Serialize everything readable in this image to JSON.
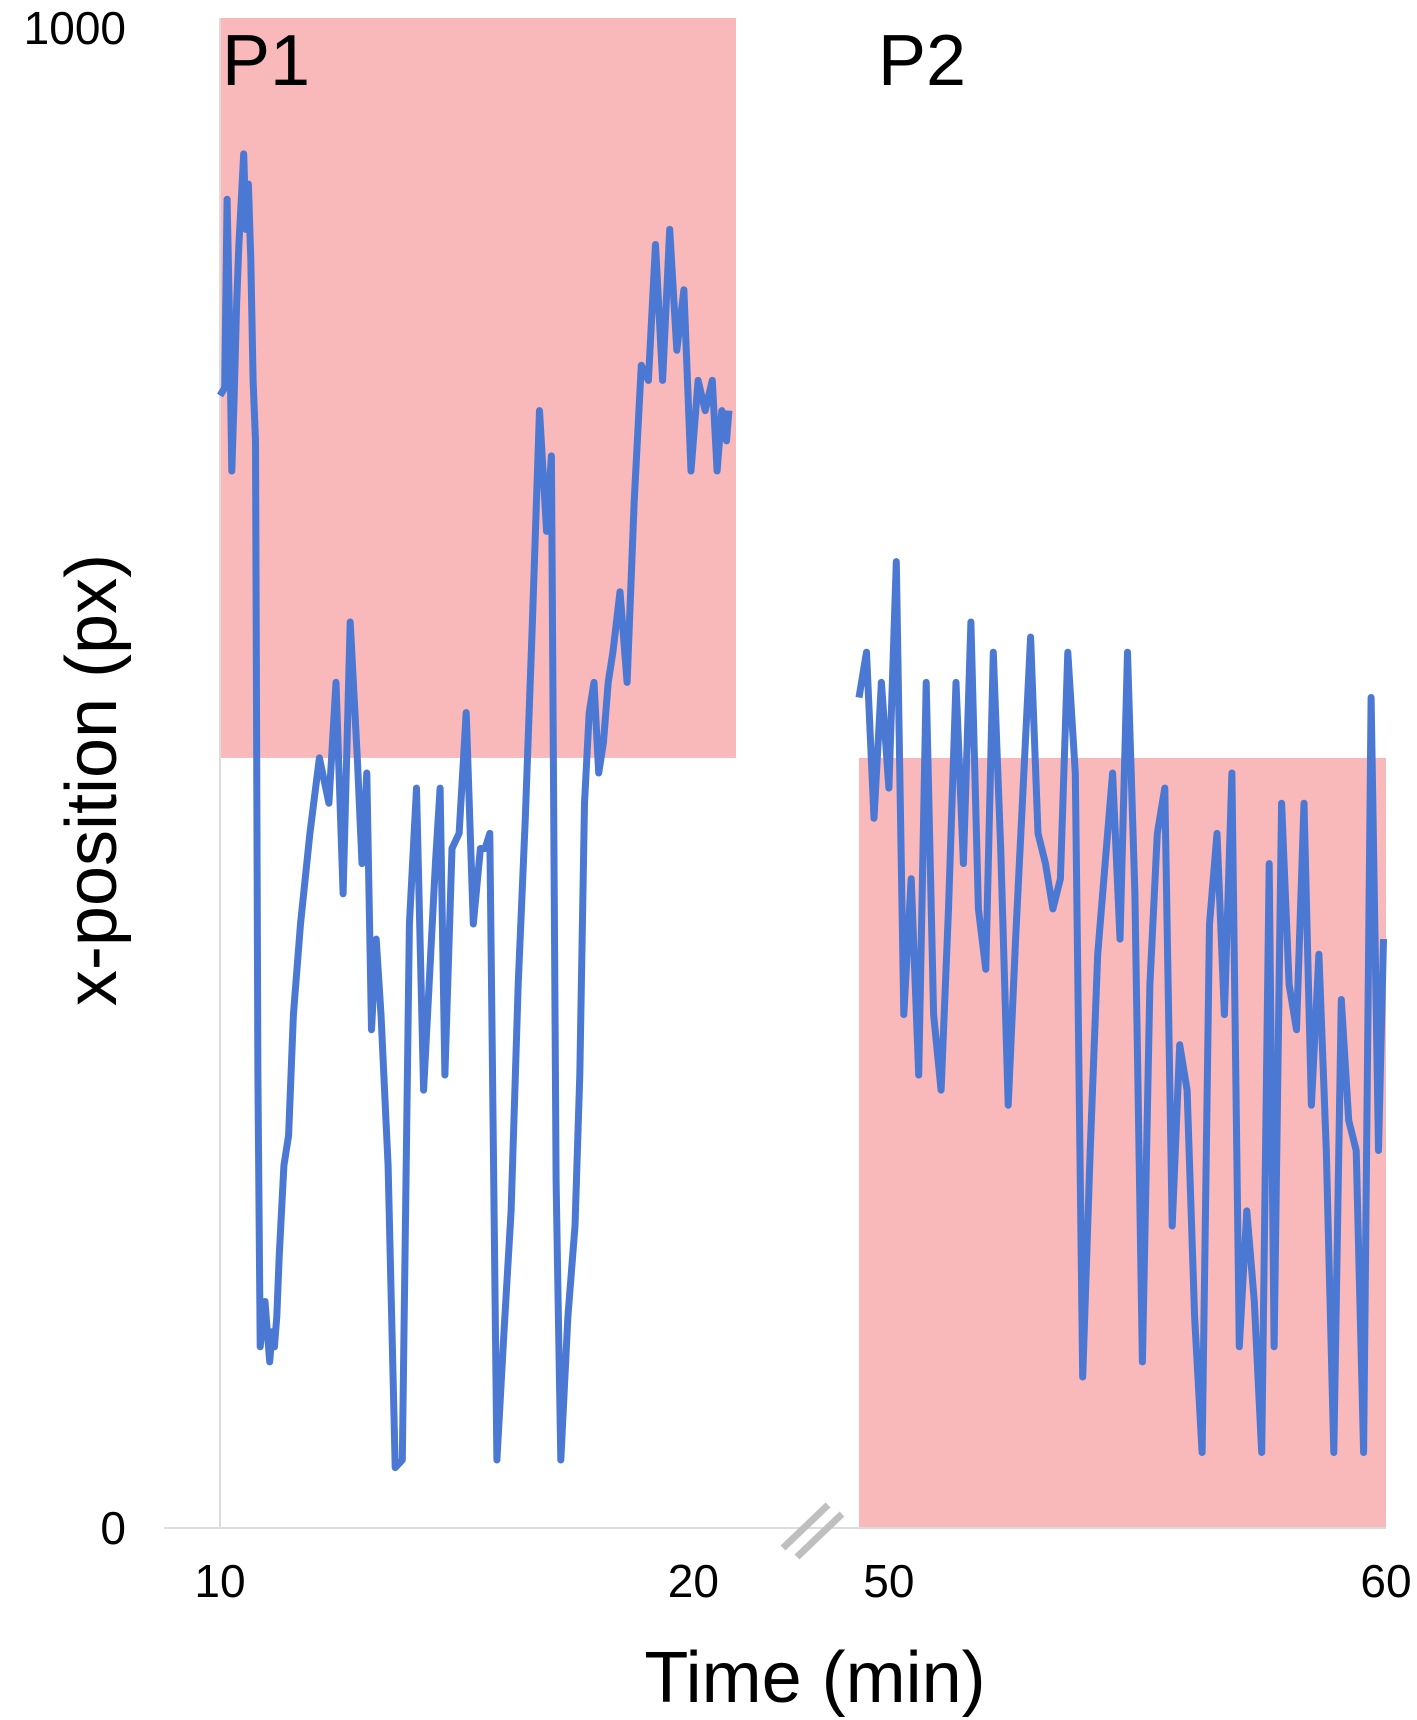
{
  "chart_data": {
    "type": "line",
    "xlabel": "Time (min)",
    "ylabel": "x-position (px)",
    "ylim": [
      0,
      1000
    ],
    "y_ticks": [
      "0",
      "1000"
    ],
    "x_axis_break": true,
    "panels": [
      {
        "label": "P1",
        "xlim": [
          10,
          20.9
        ],
        "x_ticks": [
          {
            "value": 10,
            "label": "10"
          },
          {
            "value": 20,
            "label": "20"
          }
        ],
        "shaded_region": {
          "x": [
            10,
            20.9
          ],
          "y": [
            510,
            1000
          ]
        },
        "series": {
          "color": "#4a78d2",
          "x": [
            10.0,
            10.1,
            10.15,
            10.2,
            10.25,
            10.3,
            10.35,
            10.4,
            10.5,
            10.55,
            10.6,
            10.65,
            10.7,
            10.75,
            10.8,
            10.85,
            10.95,
            11.05,
            11.1,
            11.15,
            11.2,
            11.25,
            11.35,
            11.45,
            11.55,
            11.7,
            11.9,
            12.1,
            12.3,
            12.45,
            12.6,
            12.75,
            12.9,
            13.0,
            13.1,
            13.2,
            13.3,
            13.4,
            13.55,
            13.7,
            13.85,
            14.0,
            14.15,
            14.3,
            14.45,
            14.55,
            14.65,
            14.75,
            14.9,
            15.05,
            15.2,
            15.35,
            15.5,
            15.6,
            15.7,
            15.85,
            16.0,
            16.15,
            16.3,
            16.45,
            16.6,
            16.75,
            16.9,
            17.0,
            17.1,
            17.2,
            17.35,
            17.5,
            17.6,
            17.7,
            17.8,
            17.9,
            18.0,
            18.1,
            18.2,
            18.3,
            18.45,
            18.6,
            18.75,
            18.9,
            19.05,
            19.2,
            19.35,
            19.5,
            19.65,
            19.8,
            19.95,
            20.1,
            20.25,
            20.4,
            20.5,
            20.6,
            20.7,
            20.75
          ],
          "y": [
            750,
            755,
            880,
            800,
            700,
            750,
            810,
            850,
            910,
            860,
            890,
            840,
            760,
            720,
            300,
            120,
            150,
            110,
            130,
            120,
            140,
            180,
            240,
            260,
            340,
            400,
            460,
            510,
            480,
            560,
            420,
            600,
            510,
            440,
            500,
            330,
            390,
            340,
            240,
            40,
            45,
            400,
            490,
            290,
            380,
            440,
            490,
            300,
            450,
            460,
            540,
            400,
            450,
            450,
            460,
            45,
            130,
            210,
            360,
            470,
            600,
            740,
            660,
            710,
            230,
            45,
            140,
            200,
            300,
            480,
            540,
            560,
            500,
            520,
            560,
            580,
            620,
            560,
            680,
            770,
            760,
            850,
            760,
            860,
            780,
            820,
            700,
            760,
            740,
            760,
            700,
            740,
            720,
            740
          ]
        }
      },
      {
        "label": "P2",
        "xlim": [
          49.54,
          60
        ],
        "x_ticks": [
          {
            "value": 50,
            "label": "50"
          },
          {
            "value": 60,
            "label": "60"
          }
        ],
        "shaded_region": {
          "x": [
            49.4,
            60
          ],
          "y": [
            0,
            510
          ]
        },
        "series": {
          "color": "#4a78d2",
          "x": [
            49.4,
            49.55,
            49.7,
            49.85,
            50.0,
            50.15,
            50.3,
            50.45,
            50.6,
            50.75,
            50.9,
            51.05,
            51.2,
            51.35,
            51.5,
            51.65,
            51.8,
            51.95,
            52.1,
            52.25,
            52.4,
            52.55,
            52.7,
            52.85,
            53.0,
            53.15,
            53.3,
            53.45,
            53.6,
            53.75,
            53.9,
            54.05,
            54.2,
            54.35,
            54.5,
            54.65,
            54.8,
            54.95,
            55.1,
            55.25,
            55.4,
            55.55,
            55.7,
            55.85,
            56.0,
            56.15,
            56.3,
            56.45,
            56.6,
            56.75,
            56.9,
            57.05,
            57.2,
            57.35,
            57.5,
            57.65,
            57.75,
            57.9,
            58.05,
            58.2,
            58.35,
            58.5,
            58.65,
            58.8,
            58.95,
            59.1,
            59.25,
            59.4,
            59.55,
            59.7,
            59.85,
            59.95
          ],
          "y": [
            550,
            580,
            470,
            560,
            490,
            640,
            340,
            430,
            300,
            560,
            340,
            290,
            410,
            560,
            440,
            600,
            410,
            370,
            580,
            450,
            280,
            390,
            490,
            590,
            460,
            440,
            410,
            430,
            580,
            500,
            100,
            250,
            380,
            440,
            500,
            390,
            580,
            420,
            110,
            360,
            460,
            490,
            200,
            320,
            290,
            140,
            50,
            400,
            460,
            340,
            500,
            120,
            210,
            150,
            50,
            440,
            120,
            480,
            360,
            330,
            480,
            280,
            380,
            250,
            50,
            350,
            270,
            250,
            50,
            550,
            250,
            390
          ]
        }
      }
    ]
  }
}
